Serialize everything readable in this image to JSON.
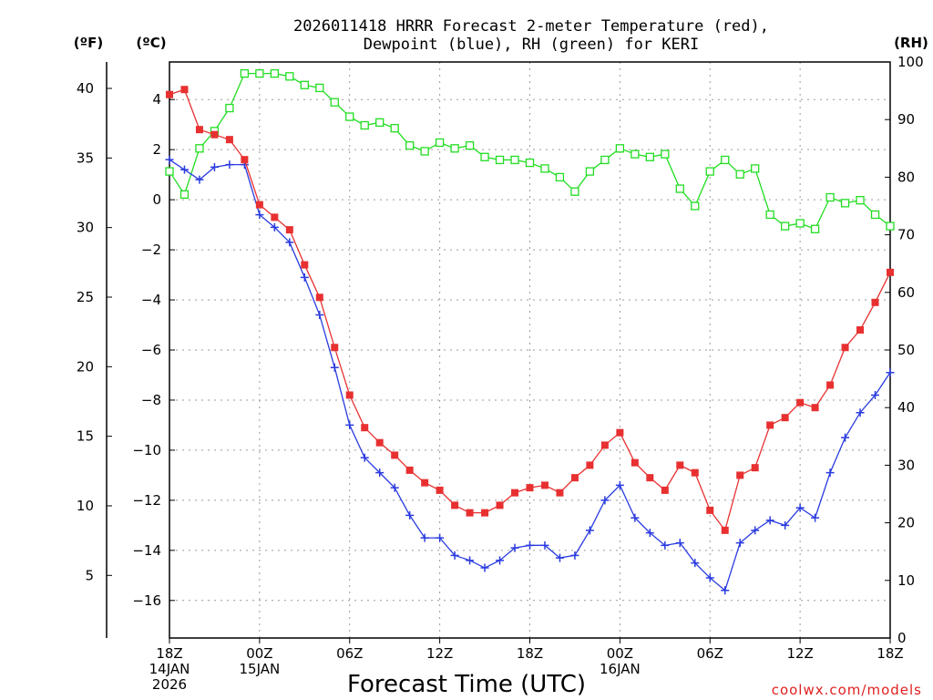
{
  "chart_data": {
    "type": "line",
    "title_line1": "2026011418 HRRR Forecast 2-meter Temperature (red),",
    "title_line2": "Dewpoint (blue), RH (green) for KERI",
    "xlabel": "Forecast Time (UTC)",
    "credit": "coolwx.com/models",
    "unit_left_f": "(ºF)",
    "unit_left_c": "(ºC)",
    "unit_right": "(RH)",
    "x_hours_range": [
      0,
      48
    ],
    "ylim_c": [
      -17.5,
      5.5
    ],
    "ylim_rh": [
      0,
      100
    ],
    "x_ticks": [
      {
        "hour": 0,
        "lines": [
          "18Z",
          "14JAN",
          "2026"
        ]
      },
      {
        "hour": 6,
        "lines": [
          "00Z",
          "15JAN"
        ]
      },
      {
        "hour": 12,
        "lines": [
          "06Z"
        ]
      },
      {
        "hour": 18,
        "lines": [
          "12Z"
        ]
      },
      {
        "hour": 24,
        "lines": [
          "18Z"
        ]
      },
      {
        "hour": 30,
        "lines": [
          "00Z",
          "16JAN"
        ]
      },
      {
        "hour": 36,
        "lines": [
          "06Z"
        ]
      },
      {
        "hour": 42,
        "lines": [
          "12Z"
        ]
      },
      {
        "hour": 48,
        "lines": [
          "18Z"
        ]
      }
    ],
    "y_ticks_c": [
      4,
      2,
      0,
      -2,
      -4,
      -6,
      -8,
      -10,
      -12,
      -14,
      -16
    ],
    "y_ticks_c_labels": [
      "4",
      "2",
      "0",
      "−2",
      "−4",
      "−6",
      "−8",
      "−10",
      "−12",
      "−14",
      "−16"
    ],
    "y_ticks_f": [
      40,
      35,
      30,
      25,
      20,
      15,
      10,
      5
    ],
    "y_ticks_f_labels": [
      "40",
      "35",
      "30",
      "25",
      "20",
      "15",
      "10",
      "5"
    ],
    "y_ticks_rh": [
      100,
      90,
      80,
      70,
      60,
      50,
      40,
      30,
      20,
      10,
      0
    ],
    "y_ticks_rh_labels": [
      "100",
      "90",
      "80",
      "70",
      "60",
      "50",
      "40",
      "30",
      "20",
      "10",
      "0"
    ],
    "series": [
      {
        "name": "2-meter Temperature",
        "unit": "C",
        "color": "#e83030",
        "marker": "filled-square",
        "hours": [
          0,
          1,
          2,
          3,
          4,
          5,
          6,
          7,
          8,
          9,
          10,
          11,
          12,
          13,
          14,
          15,
          16,
          17,
          18,
          19,
          20,
          21,
          22,
          23,
          24,
          25,
          26,
          27,
          28,
          29,
          30,
          31,
          32,
          33,
          34,
          35,
          36,
          37,
          38,
          39,
          40,
          41,
          42,
          43,
          44,
          45,
          46,
          47,
          48
        ],
        "values": [
          4.2,
          4.4,
          2.8,
          2.6,
          2.4,
          1.6,
          -0.2,
          -0.7,
          -1.2,
          -2.6,
          -3.9,
          -5.9,
          -7.8,
          -9.1,
          -9.7,
          -10.2,
          -10.8,
          -11.3,
          -11.6,
          -12.2,
          -12.5,
          -12.5,
          -12.2,
          -11.7,
          -11.5,
          -11.4,
          -11.7,
          -11.1,
          -10.6,
          -9.8,
          -9.3,
          -10.5,
          -11.1,
          -11.6,
          -10.6,
          -10.9,
          -12.4,
          -13.2,
          -11.0,
          -10.7,
          -9.0,
          -8.7,
          -8.1,
          -8.3,
          -7.4,
          -5.9,
          -5.2,
          -4.1,
          -2.9
        ]
      },
      {
        "name": "Dewpoint",
        "unit": "C",
        "color": "#2a3be0",
        "marker": "plus",
        "hours": [
          0,
          1,
          2,
          3,
          4,
          5,
          6,
          7,
          8,
          9,
          10,
          11,
          12,
          13,
          14,
          15,
          16,
          17,
          18,
          19,
          20,
          21,
          22,
          23,
          24,
          25,
          26,
          27,
          28,
          29,
          30,
          31,
          32,
          33,
          34,
          35,
          36,
          37,
          38,
          39,
          40,
          41,
          42,
          43,
          44,
          45,
          46,
          47,
          48
        ],
        "values": [
          1.6,
          1.2,
          0.8,
          1.3,
          1.4,
          1.4,
          -0.6,
          -1.1,
          -1.7,
          -3.1,
          -4.6,
          -6.7,
          -9.0,
          -10.3,
          -10.9,
          -11.5,
          -12.6,
          -13.5,
          -13.5,
          -14.2,
          -14.4,
          -14.7,
          -14.4,
          -13.9,
          -13.8,
          -13.8,
          -14.3,
          -14.2,
          -13.2,
          -12.0,
          -11.4,
          -12.7,
          -13.3,
          -13.8,
          -13.7,
          -14.5,
          -15.1,
          -15.6,
          -13.7,
          -13.2,
          -12.8,
          -13.0,
          -12.3,
          -12.7,
          -10.9,
          -9.5,
          -8.5,
          -7.8,
          -6.9
        ]
      },
      {
        "name": "RH",
        "unit": "%",
        "color": "#22dd22",
        "marker": "open-square",
        "hours": [
          0,
          1,
          2,
          3,
          4,
          5,
          6,
          7,
          8,
          9,
          10,
          11,
          12,
          13,
          14,
          15,
          16,
          17,
          18,
          19,
          20,
          21,
          22,
          23,
          24,
          25,
          26,
          27,
          28,
          29,
          30,
          31,
          32,
          33,
          34,
          35,
          36,
          37,
          38,
          39,
          40,
          41,
          42,
          43,
          44,
          45,
          46,
          47,
          48
        ],
        "values": [
          81,
          77,
          85,
          88,
          92,
          98,
          98,
          98,
          97.5,
          96,
          95.5,
          93,
          90.5,
          89,
          89.5,
          88.5,
          85.5,
          84.5,
          86,
          85,
          85.5,
          83.5,
          83,
          83,
          82.5,
          81.5,
          80,
          77.5,
          81,
          83,
          85,
          84,
          83.5,
          84,
          78,
          75,
          81,
          83,
          80.5,
          81.5,
          73.5,
          71.5,
          72,
          71,
          76.5,
          75.5,
          76,
          73.5,
          71.5
        ]
      }
    ]
  }
}
